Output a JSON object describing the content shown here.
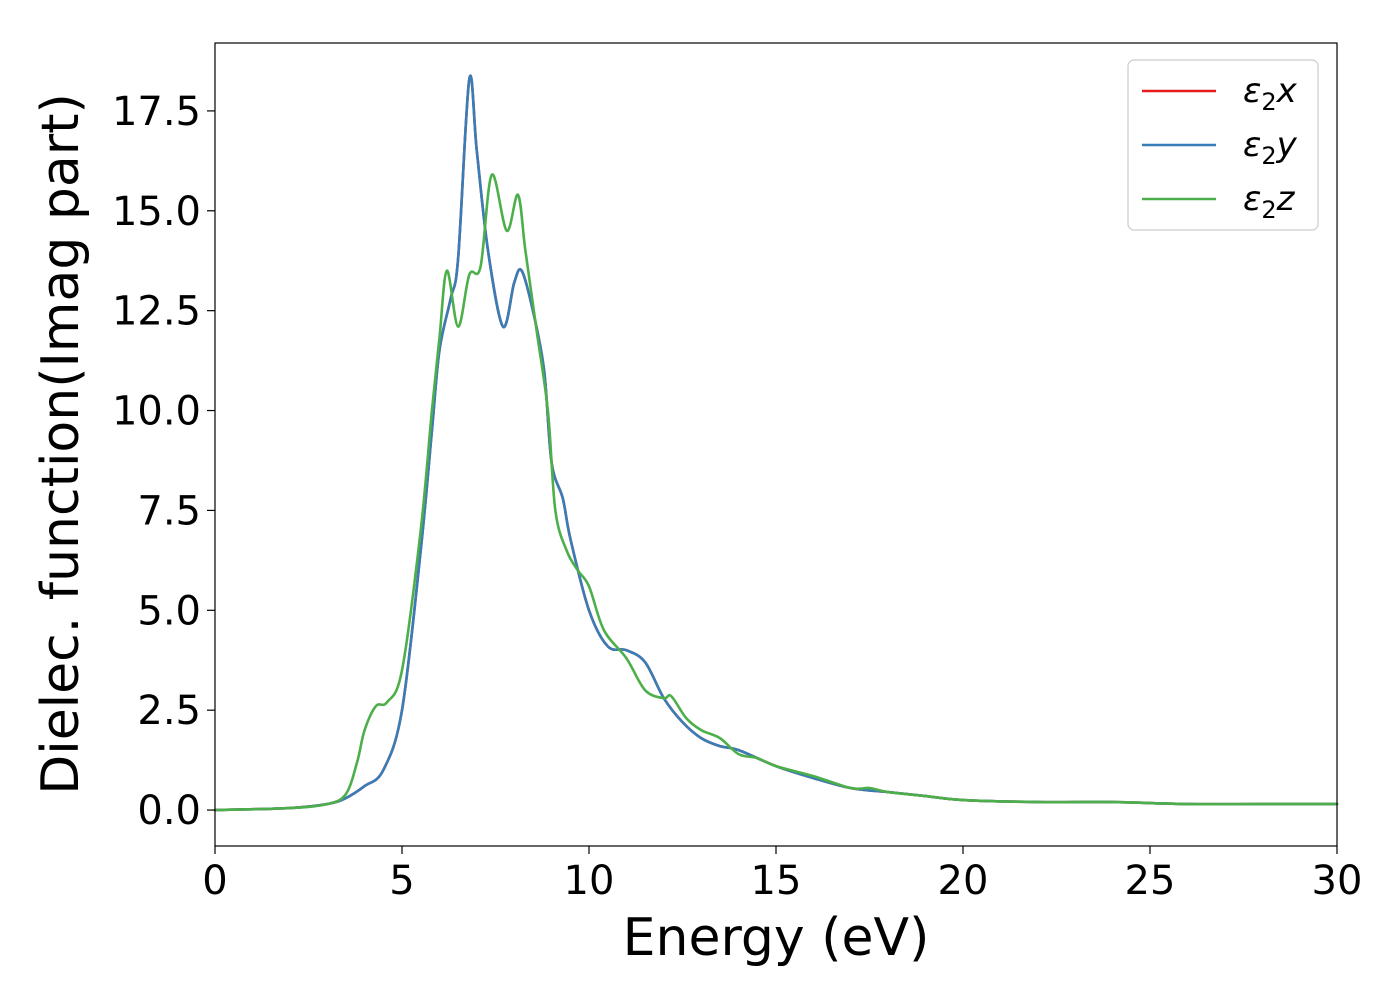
{
  "chart_data": {
    "type": "line",
    "xlabel": "Energy (eV)",
    "ylabel": "Dielec. function(Imag part)",
    "xlim": [
      0,
      30
    ],
    "ylim": [
      -0.9,
      19.2
    ],
    "xticks": [
      "0",
      "5",
      "10",
      "15",
      "20",
      "25",
      "30"
    ],
    "yticks": [
      "0.0",
      "2.5",
      "5.0",
      "7.5",
      "10.0",
      "12.5",
      "15.0",
      "17.5"
    ],
    "grid": false,
    "legend_position": "top-right",
    "series": [
      {
        "name": "ε2x",
        "name_parts": {
          "base": "ε",
          "sub": "2",
          "tail": "x"
        },
        "color": "#e41a1c",
        "x": [
          0,
          2,
          3,
          3.5,
          4,
          4.5,
          5,
          5.5,
          5.8,
          6.0,
          6.3,
          6.5,
          6.8,
          7.0,
          7.3,
          7.7,
          8.0,
          8.2,
          8.5,
          8.8,
          9.0,
          9.3,
          9.5,
          10.0,
          10.5,
          11.0,
          11.5,
          12.0,
          12.5,
          13.0,
          13.5,
          14.0,
          15.0,
          16.0,
          17.0,
          18.0,
          19.0,
          20.0,
          22.0,
          24.0,
          26.0,
          28.0,
          30.0
        ],
        "values": [
          0.0,
          0.05,
          0.15,
          0.3,
          0.6,
          1.0,
          2.5,
          6.5,
          9.5,
          11.5,
          12.8,
          13.8,
          18.3,
          16.5,
          14.0,
          12.1,
          13.2,
          13.5,
          12.5,
          11.0,
          8.7,
          7.8,
          6.8,
          5.0,
          4.1,
          4.0,
          3.7,
          2.8,
          2.2,
          1.8,
          1.6,
          1.5,
          1.1,
          0.8,
          0.55,
          0.45,
          0.35,
          0.25,
          0.2,
          0.2,
          0.15,
          0.15,
          0.15
        ]
      },
      {
        "name": "ε2y",
        "name_parts": {
          "base": "ε",
          "sub": "2",
          "tail": "y"
        },
        "color": "#377eb8",
        "x": [
          0,
          2,
          3,
          3.5,
          4,
          4.5,
          5,
          5.5,
          5.8,
          6.0,
          6.3,
          6.5,
          6.8,
          7.0,
          7.3,
          7.7,
          8.0,
          8.2,
          8.5,
          8.8,
          9.0,
          9.3,
          9.5,
          10.0,
          10.5,
          11.0,
          11.5,
          12.0,
          12.5,
          13.0,
          13.5,
          14.0,
          15.0,
          16.0,
          17.0,
          18.0,
          19.0,
          20.0,
          22.0,
          24.0,
          26.0,
          28.0,
          30.0
        ],
        "values": [
          0.0,
          0.05,
          0.15,
          0.3,
          0.6,
          1.0,
          2.5,
          6.5,
          9.5,
          11.5,
          12.8,
          13.8,
          18.3,
          16.5,
          14.0,
          12.1,
          13.2,
          13.5,
          12.5,
          11.0,
          8.7,
          7.8,
          6.8,
          5.0,
          4.1,
          4.0,
          3.7,
          2.8,
          2.2,
          1.8,
          1.6,
          1.5,
          1.1,
          0.8,
          0.55,
          0.45,
          0.35,
          0.25,
          0.2,
          0.2,
          0.15,
          0.15,
          0.15
        ]
      },
      {
        "name": "ε2z",
        "name_parts": {
          "base": "ε",
          "sub": "2",
          "tail": "z"
        },
        "color": "#4daf4a",
        "x": [
          0,
          2,
          3,
          3.5,
          3.8,
          4.0,
          4.3,
          4.6,
          5.0,
          5.5,
          5.8,
          6.0,
          6.2,
          6.5,
          6.8,
          7.1,
          7.4,
          7.8,
          8.1,
          8.3,
          8.6,
          8.9,
          9.1,
          9.4,
          9.7,
          10.0,
          10.4,
          11.0,
          11.5,
          12.0,
          12.2,
          12.6,
          13.0,
          13.5,
          14.0,
          14.5,
          15.0,
          16.0,
          17.0,
          17.5,
          18.0,
          19.0,
          20.0,
          22.0,
          24.0,
          26.0,
          28.0,
          30.0
        ],
        "values": [
          0.0,
          0.05,
          0.15,
          0.4,
          1.2,
          2.0,
          2.6,
          2.7,
          3.5,
          7.0,
          10.0,
          11.8,
          13.5,
          12.1,
          13.4,
          13.6,
          15.9,
          14.5,
          15.4,
          14.0,
          12.0,
          10.0,
          7.5,
          6.5,
          6.0,
          5.6,
          4.5,
          3.8,
          3.0,
          2.8,
          2.85,
          2.3,
          2.0,
          1.8,
          1.4,
          1.3,
          1.1,
          0.85,
          0.55,
          0.55,
          0.45,
          0.35,
          0.25,
          0.2,
          0.2,
          0.15,
          0.15,
          0.15
        ]
      }
    ]
  }
}
